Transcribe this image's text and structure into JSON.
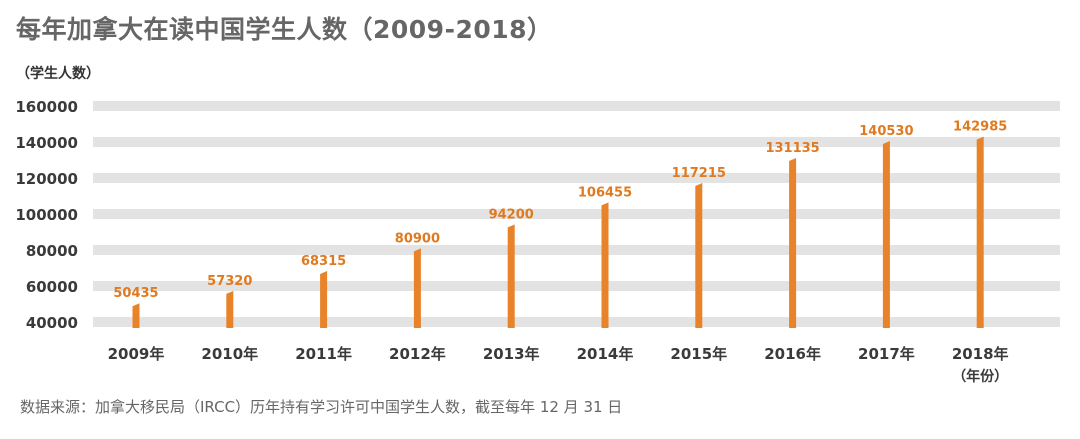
{
  "chart_data": {
    "type": "bar",
    "title": "每年加拿大在读中国学生人数（2009-2018）",
    "ylabel": "（学生人数）",
    "xlabel_unit": "（年份）",
    "categories": [
      "2009年",
      "2010年",
      "2011年",
      "2012年",
      "2013年",
      "2014年",
      "2015年",
      "2016年",
      "2017年",
      "2018年"
    ],
    "values": [
      50435,
      57320,
      68315,
      80900,
      94200,
      106455,
      117215,
      131135,
      140530,
      142985
    ],
    "data_labels": [
      "50435",
      "57320",
      "68315",
      "80900",
      "94200",
      "106455",
      "117215",
      "131135",
      "140530",
      "142985"
    ],
    "yticks": [
      "40000",
      "60000",
      "80000",
      "100000",
      "120000",
      "140000",
      "160000"
    ],
    "ylim": [
      40000,
      160000
    ],
    "grid": true,
    "bar_color": "#e8832a",
    "grid_color": "#e3e3e3"
  },
  "footer": {
    "source": "数据来源：加拿大移民局（IRCC）历年持有学习许可中国学生人数，截至每年 12 月 31 日"
  }
}
